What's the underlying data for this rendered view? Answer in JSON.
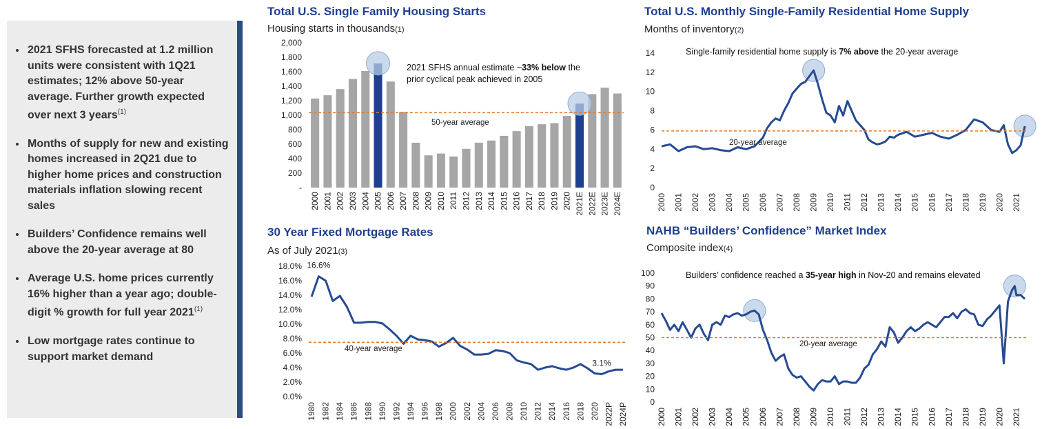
{
  "sidebar": {
    "bullets": [
      {
        "text": "2021 SFHS forecasted at 1.2 million units were consistent with 1Q21 estimates; 12% above 50-year average. Further growth expected over next 3 years",
        "note": "(1)"
      },
      {
        "text": "Months of supply for new and existing homes increased in 2Q21 due to higher home prices and construction materials inflation slowing recent sales"
      },
      {
        "text": "Builders’ Confidence remains well above the 20-year average at 80"
      },
      {
        "text": "Average U.S. home prices currently 16% higher than a year ago; double-digit % growth for full year 2021",
        "note": "(1)"
      },
      {
        "text": "Low mortgage rates continue to support market demand"
      }
    ]
  },
  "chart_data": [
    {
      "type": "bar",
      "title": "Total U.S. Single Family Housing Starts",
      "subtitle": "Housing starts in thousands",
      "subtitle_note": "(1)",
      "categories": [
        "2000",
        "2001",
        "2002",
        "2003",
        "2004",
        "2005",
        "2006",
        "2007",
        "2008",
        "2009",
        "2010",
        "2011",
        "2012",
        "2013",
        "2014",
        "2015",
        "2016",
        "2017",
        "2018",
        "2019",
        "2020",
        "2021E",
        "2022E",
        "2023E",
        "2024E"
      ],
      "values": [
        1230,
        1275,
        1360,
        1500,
        1610,
        1715,
        1465,
        1045,
        620,
        445,
        470,
        430,
        535,
        620,
        650,
        715,
        780,
        850,
        875,
        890,
        990,
        1160,
        1290,
        1380,
        1300
      ],
      "color": "#a6a6a6",
      "highlight_color": "#1f3f8f",
      "highlight": [
        5,
        21
      ],
      "ylim": [
        0,
        2000
      ],
      "yticks": [
        {
          "value": 0,
          "label": "-"
        },
        200,
        400,
        600,
        800,
        {
          "value": 1000,
          "label": "1,000"
        },
        {
          "value": 1200,
          "label": "1,200"
        },
        {
          "value": 1400,
          "label": "1,400"
        },
        {
          "value": 1600,
          "label": "1,600"
        },
        {
          "value": 1800,
          "label": "1,800"
        },
        {
          "value": 2000,
          "label": "2,000"
        }
      ],
      "reference": {
        "value": 1035,
        "label": "50-year average",
        "color": "#e87722"
      },
      "annotation": {
        "before": "2021 SFHS annual estimate ~",
        "bold": "33% below",
        "after": " the prior cyclical peak achieved in 2005"
      }
    },
    {
      "type": "line",
      "title": "Total U.S. Monthly Single-Family Residential Home Supply",
      "subtitle": "Months of inventory",
      "subtitle_note": "(2)",
      "x": [
        2000,
        2000.5,
        2001,
        2001.5,
        2002,
        2002.5,
        2003,
        2003.5,
        2004,
        2004.5,
        2005,
        2005.5,
        2006,
        2006.25,
        2006.5,
        2006.75,
        2007,
        2007.25,
        2007.5,
        2007.75,
        2008,
        2008.25,
        2008.5,
        2008.75,
        2009,
        2009.25,
        2009.5,
        2009.75,
        2010,
        2010.25,
        2010.5,
        2010.75,
        2011,
        2011.25,
        2011.5,
        2011.75,
        2012,
        2012.25,
        2012.5,
        2012.75,
        2013,
        2013.25,
        2013.5,
        2013.75,
        2014,
        2014.5,
        2015,
        2015.5,
        2016,
        2016.5,
        2017,
        2017.5,
        2018,
        2018.5,
        2019,
        2019.5,
        2020,
        2020.25,
        2020.5,
        2020.75,
        2021,
        2021.25,
        2021.5
      ],
      "values": [
        4.3,
        4.5,
        3.8,
        4.2,
        4.3,
        4.0,
        4.1,
        3.9,
        3.8,
        4.2,
        4.0,
        4.3,
        5.2,
        6.2,
        6.8,
        7.2,
        7.0,
        8.0,
        8.8,
        9.8,
        10.3,
        10.8,
        11.0,
        11.6,
        12.2,
        10.8,
        9.2,
        7.8,
        7.5,
        6.8,
        8.5,
        7.5,
        9.0,
        8.0,
        7.0,
        6.5,
        6.0,
        5.0,
        4.7,
        4.5,
        4.6,
        4.8,
        5.3,
        5.2,
        5.5,
        5.8,
        5.3,
        5.5,
        5.7,
        5.3,
        5.1,
        5.5,
        6.0,
        7.1,
        6.8,
        6.0,
        5.8,
        6.5,
        4.5,
        3.6,
        3.9,
        4.4,
        6.4
      ],
      "color": "#264a93",
      "highlight": [
        24,
        62
      ],
      "xlim": [
        2000,
        2021.7
      ],
      "xticks": [
        2000,
        2001,
        2002,
        2003,
        2004,
        2005,
        2006,
        2007,
        2008,
        2009,
        2010,
        2011,
        2012,
        2013,
        2014,
        2015,
        2016,
        2017,
        2018,
        2019,
        2020,
        2021
      ],
      "ylim": [
        0,
        14
      ],
      "yticks": [
        0,
        2,
        4,
        6,
        8,
        10,
        12,
        14
      ],
      "reference": {
        "value": 5.9,
        "label": "20-year average",
        "color": "#e87722"
      },
      "annotation": {
        "before": "Single-family residential home supply is ",
        "bold": "7% above",
        "after": " the 20-year average"
      }
    },
    {
      "type": "line",
      "title": "30 Year Fixed Mortgage Rates",
      "subtitle": "As of July 2021",
      "subtitle_note": "(3)",
      "x": [
        1980,
        1981,
        1982,
        1983,
        1984,
        1985,
        1986,
        1987,
        1988,
        1989,
        1990,
        1991,
        1992,
        1993,
        1994,
        1995,
        1996,
        1997,
        1998,
        1999,
        2000,
        2001,
        2002,
        2003,
        2004,
        2005,
        2006,
        2007,
        2008,
        2009,
        2010,
        2011,
        2012,
        2013,
        2014,
        2015,
        2016,
        2017,
        2018,
        2019,
        2020,
        2021,
        2022,
        2023,
        2024
      ],
      "values": [
        13.8,
        16.6,
        16.0,
        13.2,
        13.9,
        12.4,
        10.2,
        10.2,
        10.3,
        10.3,
        10.1,
        9.3,
        8.4,
        7.3,
        8.4,
        7.9,
        7.8,
        7.6,
        6.9,
        7.4,
        8.1,
        7.0,
        6.5,
        5.8,
        5.8,
        5.9,
        6.4,
        6.3,
        6.0,
        5.0,
        4.7,
        4.5,
        3.7,
        4.0,
        4.2,
        3.9,
        3.7,
        4.0,
        4.5,
        3.9,
        3.2,
        3.1,
        3.5,
        3.7,
        3.7
      ],
      "value_labels": [
        null,
        "16.6%",
        null,
        null,
        null,
        null,
        null,
        null,
        null,
        null,
        null,
        null,
        null,
        null,
        null,
        null,
        null,
        null,
        null,
        null,
        null,
        null,
        null,
        null,
        null,
        null,
        null,
        null,
        null,
        null,
        null,
        null,
        null,
        null,
        null,
        null,
        null,
        null,
        null,
        null,
        null,
        "3.1%",
        null,
        null,
        null
      ],
      "color": "#264a93",
      "highlight": [],
      "xlim": [
        1979.6,
        2024.4
      ],
      "xticks": [
        1980,
        1982,
        1984,
        1986,
        1988,
        1990,
        1992,
        1994,
        1996,
        1998,
        2000,
        2002,
        2004,
        2006,
        2008,
        2010,
        2012,
        2014,
        2016,
        2018,
        2020,
        {
          "value": 2022,
          "label": "2022P"
        },
        {
          "value": 2024,
          "label": "2024P"
        }
      ],
      "ylim": [
        0,
        18
      ],
      "yticks": [
        {
          "value": 0,
          "label": "0.0%"
        },
        {
          "value": 2,
          "label": "2.0%"
        },
        {
          "value": 4,
          "label": "4.0%"
        },
        {
          "value": 6,
          "label": "6.0%"
        },
        {
          "value": 8,
          "label": "8.0%"
        },
        {
          "value": 10,
          "label": "10.0%"
        },
        {
          "value": 12,
          "label": "12.0%"
        },
        {
          "value": 14,
          "label": "14.0%"
        },
        {
          "value": 16,
          "label": "16.0%"
        },
        {
          "value": 18,
          "label": "18.0%"
        }
      ],
      "reference": {
        "value": 7.5,
        "label": "40-year average",
        "color": "#e87722"
      }
    },
    {
      "type": "line",
      "title": "NAHB “Builders’ Confidence” Market Index",
      "subtitle": "Composite index",
      "subtitle_note": "(4)",
      "x": [
        2000,
        2000.25,
        2000.5,
        2000.75,
        2001,
        2001.25,
        2001.5,
        2001.75,
        2002,
        2002.25,
        2002.5,
        2002.75,
        2003,
        2003.25,
        2003.5,
        2003.75,
        2004,
        2004.25,
        2004.5,
        2004.75,
        2005,
        2005.25,
        2005.5,
        2005.75,
        2006,
        2006.25,
        2006.5,
        2006.75,
        2007,
        2007.25,
        2007.5,
        2007.75,
        2008,
        2008.25,
        2008.5,
        2008.75,
        2009,
        2009.25,
        2009.5,
        2009.75,
        2010,
        2010.25,
        2010.5,
        2010.75,
        2011,
        2011.25,
        2011.5,
        2011.75,
        2012,
        2012.25,
        2012.5,
        2012.75,
        2013,
        2013.25,
        2013.5,
        2013.75,
        2014,
        2014.25,
        2014.5,
        2014.75,
        2015,
        2015.25,
        2015.5,
        2015.75,
        2016,
        2016.25,
        2016.5,
        2016.75,
        2017,
        2017.25,
        2017.5,
        2017.75,
        2018,
        2018.25,
        2018.5,
        2018.75,
        2019,
        2019.25,
        2019.5,
        2019.75,
        2020,
        2020.25,
        2020.4,
        2020.5,
        2020.75,
        2020.9,
        2021,
        2021.25,
        2021.5
      ],
      "values": [
        69,
        63,
        56,
        60,
        55,
        62,
        56,
        50,
        57,
        60,
        53,
        48,
        60,
        62,
        60,
        67,
        66,
        68,
        69,
        67,
        68,
        70,
        71,
        68,
        56,
        48,
        38,
        32,
        35,
        37,
        26,
        21,
        19,
        20,
        16,
        12,
        9,
        14,
        17,
        16,
        16,
        20,
        14,
        16,
        16,
        15,
        15,
        19,
        26,
        29,
        37,
        41,
        47,
        43,
        58,
        54,
        46,
        50,
        55,
        58,
        55,
        57,
        60,
        62,
        60,
        58,
        62,
        66,
        66,
        69,
        65,
        70,
        72,
        69,
        68,
        60,
        59,
        64,
        67,
        71,
        75,
        30,
        58,
        78,
        87,
        90,
        83,
        83,
        80
      ],
      "color": "#264a93",
      "highlight": [
        22,
        85
      ],
      "xlim": [
        2000,
        2021.7
      ],
      "xticks": [
        2000,
        2001,
        2002,
        2003,
        2004,
        2005,
        2006,
        2007,
        2008,
        2009,
        2010,
        2011,
        2012,
        2013,
        2014,
        2015,
        2016,
        2017,
        2018,
        2019,
        2020,
        2021
      ],
      "ylim": [
        0,
        100
      ],
      "yticks": [
        0,
        10,
        20,
        30,
        40,
        50,
        60,
        70,
        80,
        90,
        100
      ],
      "reference": {
        "value": 50,
        "label": "20-year average",
        "color": "#e87722"
      },
      "annotation": {
        "before": "Builders’ confidence reached a ",
        "bold": "35-year high",
        "after": " in Nov-20 and remains elevated"
      }
    }
  ]
}
